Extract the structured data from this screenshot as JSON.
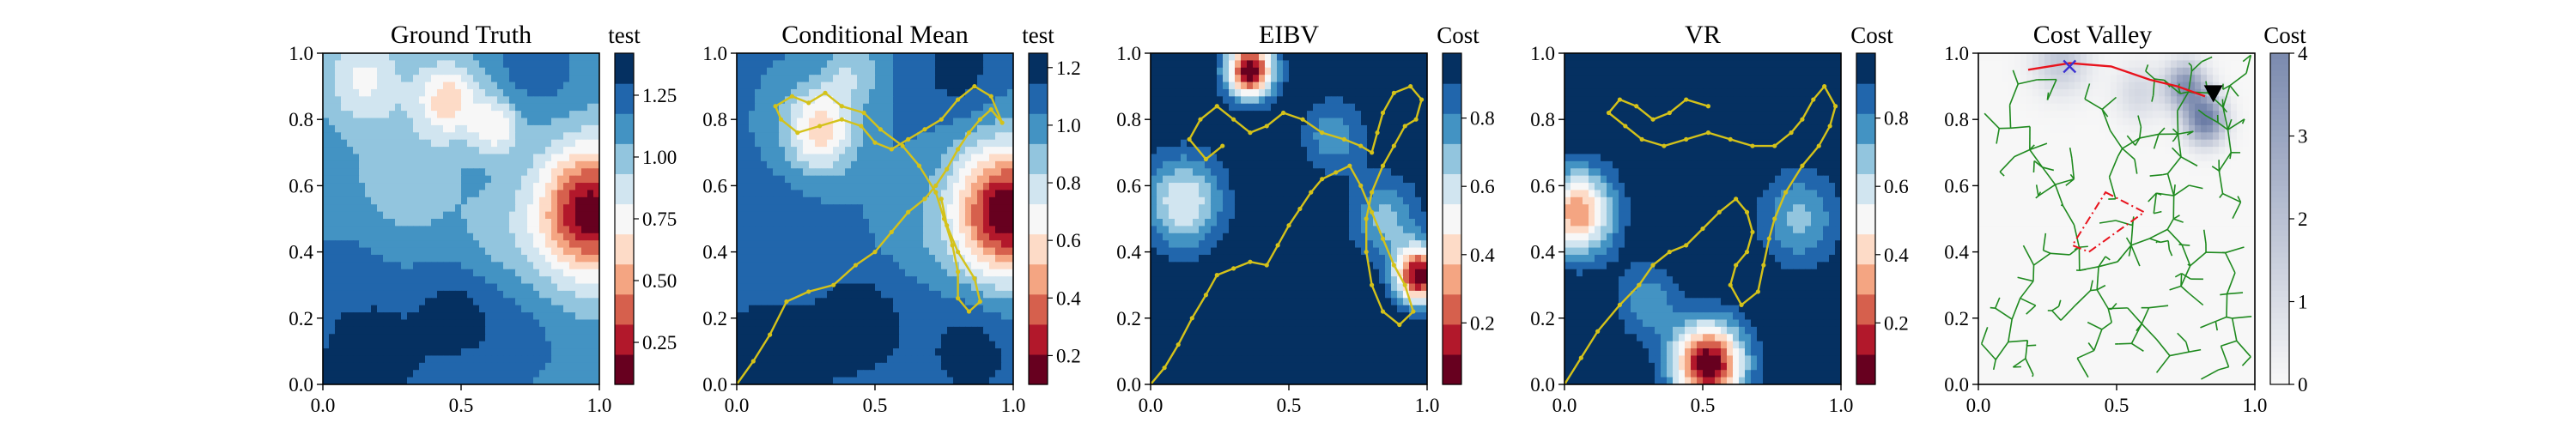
{
  "colors": {
    "rdbu": [
      "#67001f",
      "#b2182b",
      "#d6604d",
      "#f4a582",
      "#fddbc7",
      "#f7f7f7",
      "#d1e5f0",
      "#92c5de",
      "#4393c3",
      "#2166ac",
      "#053061"
    ],
    "path": "#d4c21a",
    "tree": "#1f8a1f",
    "route": "#e8131d",
    "cost_low": "#f7f7f7",
    "cost_high": "#5b6e9c"
  },
  "chart_data": [
    {
      "type": "heatmap",
      "title": "Ground Truth",
      "colorbar_label": "test",
      "colorbar_ticks": [
        "0.25",
        "0.50",
        "0.75",
        "1.00",
        "1.25"
      ],
      "colorbar_range": [
        0.08,
        1.42
      ],
      "x_ticks": [
        "0.0",
        "0.5",
        "1.0"
      ],
      "y_ticks": [
        "0.0",
        "0.2",
        "0.4",
        "0.6",
        "0.8",
        "1.0"
      ],
      "xlim": [
        0,
        1
      ],
      "ylim": [
        0,
        1
      ],
      "field": [
        {
          "x": 0.97,
          "y": 0.52,
          "value": 0.12,
          "sigma": 0.14
        },
        {
          "x": 0.45,
          "y": 0.86,
          "value": 0.62,
          "sigma": 0.08
        },
        {
          "x": 0.62,
          "y": 0.78,
          "value": 0.7,
          "sigma": 0.06
        },
        {
          "x": 0.15,
          "y": 0.92,
          "value": 0.78,
          "sigma": 0.1
        },
        {
          "x": 0.15,
          "y": 0.05,
          "value": 1.42,
          "sigma": 0.14
        },
        {
          "x": 0.48,
          "y": 0.2,
          "value": 1.35,
          "sigma": 0.12
        },
        {
          "x": 0.1,
          "y": 0.35,
          "value": 1.2,
          "sigma": 0.13
        },
        {
          "x": 0.72,
          "y": 0.12,
          "value": 1.22,
          "sigma": 0.1
        },
        {
          "x": 0.78,
          "y": 0.96,
          "value": 1.25,
          "sigma": 0.1
        },
        {
          "x": 0.3,
          "y": 0.62,
          "value": 0.95,
          "sigma": 0.12
        },
        {
          "x": 0.62,
          "y": 0.45,
          "value": 1.02,
          "sigma": 0.1
        }
      ],
      "field_background": 1.12
    },
    {
      "type": "heatmap",
      "title": "Conditional Mean",
      "colorbar_label": "test",
      "colorbar_ticks": [
        "0.2",
        "0.4",
        "0.6",
        "0.8",
        "1.0",
        "1.2"
      ],
      "colorbar_range": [
        0.1,
        1.25
      ],
      "x_ticks": [
        "0.0",
        "0.5",
        "1.0"
      ],
      "y_ticks": [
        "0.0",
        "0.2",
        "0.4",
        "0.6",
        "0.8",
        "1.0"
      ],
      "xlim": [
        0,
        1
      ],
      "ylim": [
        0,
        1
      ],
      "field": [
        {
          "x": 0.98,
          "y": 0.52,
          "value": 0.1,
          "sigma": 0.14
        },
        {
          "x": 0.3,
          "y": 0.77,
          "value": 0.55,
          "sigma": 0.09
        },
        {
          "x": 0.42,
          "y": 0.95,
          "value": 0.85,
          "sigma": 0.07
        },
        {
          "x": 0.1,
          "y": 0.05,
          "value": 1.25,
          "sigma": 0.15
        },
        {
          "x": 0.45,
          "y": 0.18,
          "value": 1.22,
          "sigma": 0.12
        },
        {
          "x": 0.85,
          "y": 0.1,
          "value": 1.2,
          "sigma": 0.12
        },
        {
          "x": 0.15,
          "y": 0.5,
          "value": 1.1,
          "sigma": 0.12
        },
        {
          "x": 0.8,
          "y": 0.95,
          "value": 1.2,
          "sigma": 0.1
        },
        {
          "x": 0.62,
          "y": 0.45,
          "value": 1.0,
          "sigma": 0.1
        }
      ],
      "field_background": 1.05,
      "path": [
        [
          0.0,
          0.0
        ],
        [
          0.06,
          0.07
        ],
        [
          0.12,
          0.15
        ],
        [
          0.18,
          0.25
        ],
        [
          0.26,
          0.28
        ],
        [
          0.35,
          0.3
        ],
        [
          0.43,
          0.36
        ],
        [
          0.5,
          0.4
        ],
        [
          0.56,
          0.46
        ],
        [
          0.62,
          0.52
        ],
        [
          0.68,
          0.56
        ],
        [
          0.72,
          0.6
        ],
        [
          0.76,
          0.65
        ],
        [
          0.8,
          0.71
        ],
        [
          0.84,
          0.76
        ],
        [
          0.88,
          0.8
        ],
        [
          0.92,
          0.83
        ],
        [
          0.96,
          0.79
        ],
        [
          0.92,
          0.87
        ],
        [
          0.86,
          0.9
        ],
        [
          0.8,
          0.86
        ],
        [
          0.74,
          0.8
        ],
        [
          0.68,
          0.77
        ],
        [
          0.62,
          0.74
        ],
        [
          0.56,
          0.71
        ],
        [
          0.5,
          0.73
        ],
        [
          0.45,
          0.78
        ],
        [
          0.38,
          0.8
        ],
        [
          0.3,
          0.78
        ],
        [
          0.22,
          0.76
        ],
        [
          0.16,
          0.8
        ],
        [
          0.14,
          0.84
        ],
        [
          0.2,
          0.87
        ],
        [
          0.26,
          0.85
        ],
        [
          0.32,
          0.88
        ],
        [
          0.38,
          0.84
        ],
        [
          0.46,
          0.82
        ],
        [
          0.52,
          0.77
        ],
        [
          0.6,
          0.72
        ],
        [
          0.66,
          0.66
        ],
        [
          0.72,
          0.58
        ],
        [
          0.75,
          0.5
        ],
        [
          0.78,
          0.42
        ],
        [
          0.8,
          0.34
        ],
        [
          0.8,
          0.26
        ],
        [
          0.84,
          0.22
        ],
        [
          0.88,
          0.25
        ],
        [
          0.86,
          0.32
        ],
        [
          0.8,
          0.4
        ],
        [
          0.76,
          0.48
        ],
        [
          0.74,
          0.56
        ]
      ]
    },
    {
      "type": "heatmap",
      "title": "EIBV",
      "colorbar_label": "Cost",
      "colorbar_ticks": [
        "0.2",
        "0.4",
        "0.6",
        "0.8"
      ],
      "colorbar_range": [
        0.02,
        0.99
      ],
      "x_ticks": [
        "0.0",
        "0.5",
        "1.0"
      ],
      "y_ticks": [
        "0.0",
        "0.2",
        "0.4",
        "0.6",
        "0.8",
        "1.0"
      ],
      "xlim": [
        0,
        1
      ],
      "ylim": [
        0,
        1
      ],
      "field": [
        {
          "x": 0.36,
          "y": 0.95,
          "value": 0.02,
          "sigma": 0.06
        },
        {
          "x": 0.97,
          "y": 0.33,
          "value": 0.04,
          "sigma": 0.06
        },
        {
          "x": 0.12,
          "y": 0.55,
          "value": 0.55,
          "sigma": 0.1
        },
        {
          "x": 0.85,
          "y": 0.5,
          "value": 0.7,
          "sigma": 0.09
        },
        {
          "x": 0.66,
          "y": 0.75,
          "value": 0.75,
          "sigma": 0.08
        }
      ],
      "field_background": 0.99,
      "path": [
        [
          0.0,
          0.0
        ],
        [
          0.05,
          0.05
        ],
        [
          0.1,
          0.12
        ],
        [
          0.15,
          0.2
        ],
        [
          0.2,
          0.27
        ],
        [
          0.24,
          0.33
        ],
        [
          0.3,
          0.35
        ],
        [
          0.36,
          0.37
        ],
        [
          0.42,
          0.36
        ],
        [
          0.46,
          0.42
        ],
        [
          0.5,
          0.48
        ],
        [
          0.54,
          0.53
        ],
        [
          0.58,
          0.58
        ],
        [
          0.62,
          0.62
        ],
        [
          0.67,
          0.64
        ],
        [
          0.72,
          0.66
        ],
        [
          0.76,
          0.6
        ],
        [
          0.8,
          0.52
        ],
        [
          0.84,
          0.44
        ],
        [
          0.88,
          0.36
        ],
        [
          0.92,
          0.3
        ],
        [
          0.95,
          0.22
        ],
        [
          0.9,
          0.18
        ],
        [
          0.84,
          0.22
        ],
        [
          0.8,
          0.3
        ],
        [
          0.78,
          0.4
        ],
        [
          0.78,
          0.5
        ],
        [
          0.8,
          0.58
        ],
        [
          0.84,
          0.66
        ],
        [
          0.88,
          0.72
        ],
        [
          0.92,
          0.78
        ],
        [
          0.96,
          0.8
        ],
        [
          0.98,
          0.86
        ],
        [
          0.94,
          0.9
        ],
        [
          0.88,
          0.88
        ],
        [
          0.84,
          0.82
        ],
        [
          0.82,
          0.76
        ],
        [
          0.8,
          0.7
        ],
        [
          0.76,
          0.72
        ],
        [
          0.7,
          0.74
        ],
        [
          0.62,
          0.76
        ],
        [
          0.55,
          0.8
        ],
        [
          0.48,
          0.82
        ],
        [
          0.42,
          0.78
        ],
        [
          0.36,
          0.76
        ],
        [
          0.3,
          0.8
        ],
        [
          0.24,
          0.84
        ],
        [
          0.18,
          0.8
        ],
        [
          0.14,
          0.74
        ],
        [
          0.2,
          0.68
        ],
        [
          0.26,
          0.72
        ]
      ]
    },
    {
      "type": "heatmap",
      "title": "VR",
      "colorbar_label": "Cost",
      "colorbar_ticks": [
        "0.2",
        "0.4",
        "0.6",
        "0.8"
      ],
      "colorbar_range": [
        0.02,
        0.99
      ],
      "x_ticks": [
        "0.0",
        "0.5",
        "1.0"
      ],
      "y_ticks": [
        "0.0",
        "0.2",
        "0.4",
        "0.6",
        "0.8",
        "1.0"
      ],
      "xlim": [
        0,
        1
      ],
      "ylim": [
        0,
        1
      ],
      "field": [
        {
          "x": 0.52,
          "y": 0.06,
          "value": 0.02,
          "sigma": 0.09
        },
        {
          "x": 0.05,
          "y": 0.52,
          "value": 0.3,
          "sigma": 0.09
        },
        {
          "x": 0.85,
          "y": 0.5,
          "value": 0.7,
          "sigma": 0.1
        },
        {
          "x": 0.3,
          "y": 0.25,
          "value": 0.75,
          "sigma": 0.08
        }
      ],
      "field_background": 0.99,
      "path": [
        [
          0.0,
          0.0
        ],
        [
          0.06,
          0.08
        ],
        [
          0.12,
          0.16
        ],
        [
          0.2,
          0.24
        ],
        [
          0.27,
          0.3
        ],
        [
          0.32,
          0.36
        ],
        [
          0.38,
          0.4
        ],
        [
          0.44,
          0.42
        ],
        [
          0.5,
          0.47
        ],
        [
          0.56,
          0.52
        ],
        [
          0.62,
          0.56
        ],
        [
          0.66,
          0.52
        ],
        [
          0.68,
          0.46
        ],
        [
          0.66,
          0.4
        ],
        [
          0.62,
          0.36
        ],
        [
          0.6,
          0.3
        ],
        [
          0.64,
          0.24
        ],
        [
          0.7,
          0.28
        ],
        [
          0.72,
          0.36
        ],
        [
          0.74,
          0.44
        ],
        [
          0.76,
          0.5
        ],
        [
          0.8,
          0.58
        ],
        [
          0.86,
          0.66
        ],
        [
          0.92,
          0.72
        ],
        [
          0.96,
          0.78
        ],
        [
          0.98,
          0.84
        ],
        [
          0.94,
          0.9
        ],
        [
          0.9,
          0.86
        ],
        [
          0.86,
          0.8
        ],
        [
          0.82,
          0.76
        ],
        [
          0.76,
          0.72
        ],
        [
          0.68,
          0.72
        ],
        [
          0.6,
          0.74
        ],
        [
          0.52,
          0.76
        ],
        [
          0.44,
          0.74
        ],
        [
          0.36,
          0.72
        ],
        [
          0.28,
          0.74
        ],
        [
          0.22,
          0.78
        ],
        [
          0.16,
          0.82
        ],
        [
          0.2,
          0.86
        ],
        [
          0.26,
          0.84
        ],
        [
          0.32,
          0.8
        ],
        [
          0.38,
          0.82
        ],
        [
          0.44,
          0.86
        ],
        [
          0.52,
          0.84
        ]
      ]
    },
    {
      "type": "heatmap",
      "title": "Cost Valley",
      "colorbar_label": "Cost",
      "colorbar_ticks": [
        "0",
        "1",
        "2",
        "3",
        "4"
      ],
      "colorbar_range": [
        0,
        4
      ],
      "x_ticks": [
        "0.0",
        "0.5",
        "1.0"
      ],
      "y_ticks": [
        "0.0",
        "0.2",
        "0.4",
        "0.6",
        "0.8",
        "1.0"
      ],
      "xlim": [
        0,
        1
      ],
      "ylim": [
        0,
        1
      ],
      "field": [
        {
          "x": 0.3,
          "y": 0.98,
          "value": 1.4,
          "sigma": 0.07
        },
        {
          "x": 0.58,
          "y": 0.88,
          "value": 0.9,
          "sigma": 0.06
        },
        {
          "x": 0.82,
          "y": 0.8,
          "value": 3.6,
          "sigma": 0.05
        },
        {
          "x": 0.75,
          "y": 0.9,
          "value": 3.0,
          "sigma": 0.05
        }
      ],
      "field_background": 0.0,
      "route": [
        [
          0.18,
          0.95
        ],
        [
          0.33,
          0.97
        ],
        [
          0.48,
          0.96
        ],
        [
          0.62,
          0.92
        ],
        [
          0.72,
          0.9
        ],
        [
          0.82,
          0.87
        ]
      ],
      "start_marker": [
        0.33,
        0.96
      ],
      "end_marker": [
        0.85,
        0.88
      ],
      "polygon": [
        [
          0.46,
          0.58
        ],
        [
          0.6,
          0.52
        ],
        [
          0.4,
          0.4
        ],
        [
          0.34,
          0.42
        ]
      ]
    }
  ]
}
